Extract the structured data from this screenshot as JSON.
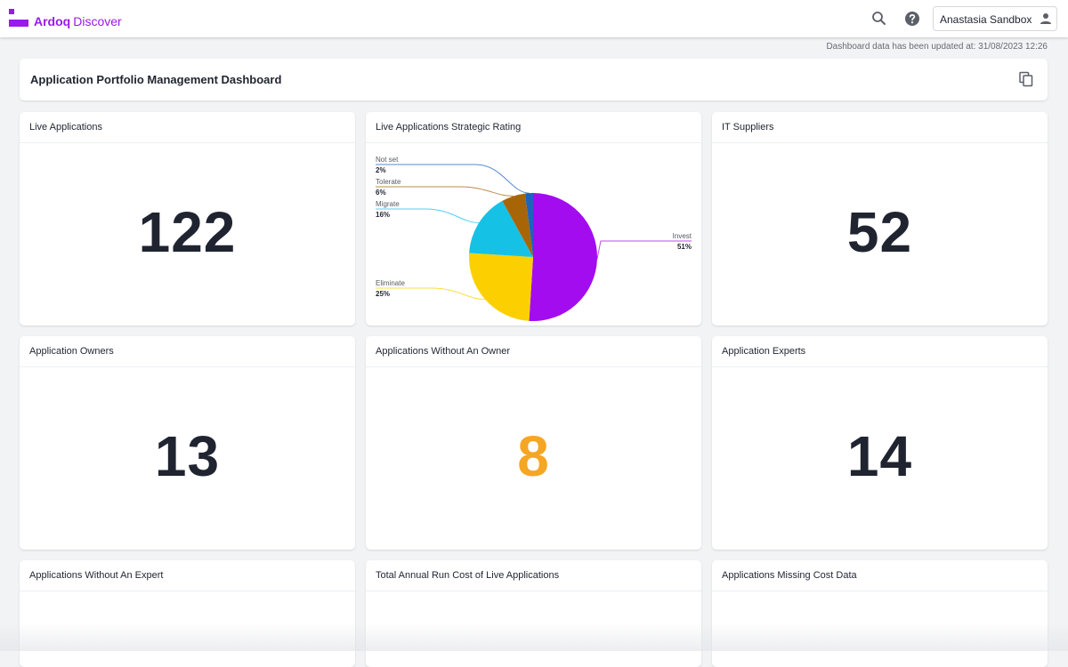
{
  "header": {
    "brand": "Ardoq",
    "product": "Discover",
    "user_name": "Anastasia Sandbox",
    "icons": [
      "search-icon",
      "help-icon",
      "user-icon"
    ]
  },
  "updated_text": "Dashboard data has been updated at: 31/08/2023 12:26",
  "dashboard": {
    "title": "Application Portfolio Management Dashboard"
  },
  "tiles": {
    "live_applications": {
      "title": "Live Applications",
      "value": "122"
    },
    "strategic_rating": {
      "title": "Live Applications Strategic Rating"
    },
    "it_suppliers": {
      "title": "IT Suppliers",
      "value": "52"
    },
    "application_owners": {
      "title": "Application Owners",
      "value": "13"
    },
    "without_owner": {
      "title": "Applications Without An Owner",
      "value": "8"
    },
    "application_experts": {
      "title": "Application Experts",
      "value": "14"
    },
    "without_expert": {
      "title": "Applications Without An Expert"
    },
    "annual_run_cost": {
      "title": "Total Annual Run Cost of Live Applications"
    },
    "missing_cost": {
      "title": "Applications Missing Cost Data"
    }
  },
  "colors": {
    "brand": "#9b18e8",
    "warning_value": "#f5a623"
  },
  "chart_data": {
    "type": "pie",
    "title": "Live Applications Strategic Rating",
    "slices": [
      {
        "label": "Invest",
        "value": 51,
        "pct_label": "51%",
        "color": "#a40cf0"
      },
      {
        "label": "Eliminate",
        "value": 25,
        "pct_label": "25%",
        "color": "#fcd000"
      },
      {
        "label": "Migrate",
        "value": 16,
        "pct_label": "16%",
        "color": "#16c1e6"
      },
      {
        "label": "Tolerate",
        "value": 6,
        "pct_label": "6%",
        "color": "#a86508"
      },
      {
        "label": "Not set",
        "value": 2,
        "pct_label": "2%",
        "color": "#1f62bf"
      }
    ]
  }
}
